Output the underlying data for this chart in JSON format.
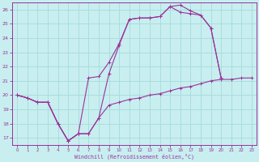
{
  "xlabel": "Windchill (Refroidissement éolien,°C)",
  "bg_color": "#c8eef0",
  "grid_color": "#aadddd",
  "line_color": "#993399",
  "xlim": [
    -0.5,
    23.5
  ],
  "ylim": [
    16.5,
    26.5
  ],
  "yticks": [
    17,
    18,
    19,
    20,
    21,
    22,
    23,
    24,
    25,
    26
  ],
  "xticks": [
    0,
    1,
    2,
    3,
    4,
    5,
    6,
    7,
    8,
    9,
    10,
    11,
    12,
    13,
    14,
    15,
    16,
    17,
    18,
    19,
    20,
    21,
    22,
    23
  ],
  "lines": [
    [
      20.0,
      19.8,
      19.5,
      19.5,
      18.0,
      16.8,
      17.3,
      17.3,
      18.4,
      19.3,
      19.5,
      19.7,
      19.8,
      20.0,
      20.1,
      20.3,
      20.5,
      20.6,
      20.8,
      21.0,
      21.1,
      21.1,
      21.2,
      21.2
    ],
    [
      20.0,
      19.8,
      19.5,
      19.5,
      18.0,
      16.8,
      17.3,
      17.3,
      18.4,
      21.5,
      23.5,
      25.3,
      25.4,
      25.4,
      25.5,
      26.2,
      26.3,
      25.9,
      25.6,
      24.7,
      21.2,
      null,
      null,
      null
    ],
    [
      20.0,
      19.8,
      19.5,
      19.5,
      18.0,
      16.8,
      17.3,
      21.2,
      21.3,
      22.3,
      23.6,
      25.3,
      25.4,
      25.4,
      25.5,
      26.2,
      25.8,
      25.7,
      25.6,
      24.7,
      21.2,
      null,
      null,
      null
    ]
  ]
}
